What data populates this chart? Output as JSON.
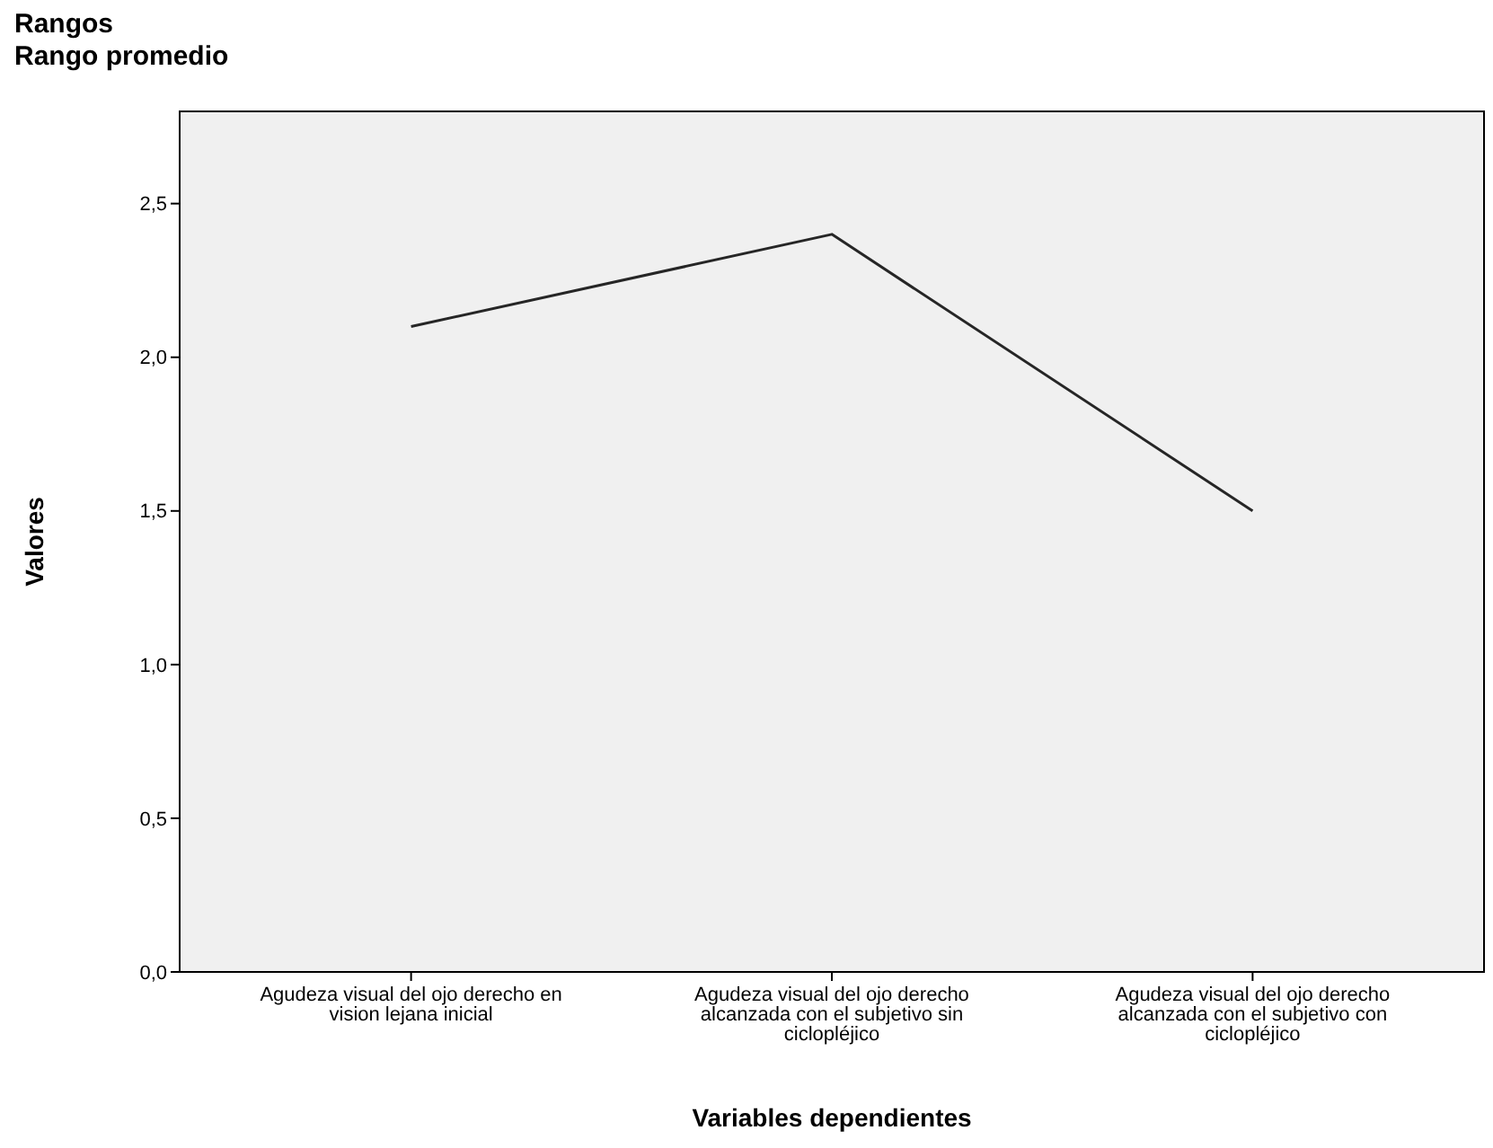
{
  "chart_data": {
    "type": "line",
    "title": "Rangos",
    "subtitle": "Rango promedio",
    "xlabel": "Variables dependientes",
    "ylabel": "Valores",
    "categories": [
      "Agudeza visual del ojo derecho en vision lejana inicial",
      "Agudeza visual del ojo derecho alcanzada con el subjetivo sin ciclopléjico",
      "Agudeza visual del ojo derecho alcanzada con el subjetivo con ciclopléjico"
    ],
    "series": [
      {
        "color": "#262626",
        "values": [
          2.1,
          2.4,
          1.5
        ]
      }
    ],
    "ylim": [
      0,
      2.8
    ],
    "yticks": [
      {
        "value": 0,
        "label": "0,0"
      },
      {
        "value": 0.5,
        "label": "0,5"
      },
      {
        "value": 1,
        "label": "1,0"
      },
      {
        "value": 1.5,
        "label": "1,5"
      },
      {
        "value": 2,
        "label": "2,0"
      },
      {
        "value": 2.5,
        "label": "2,5"
      }
    ],
    "grid": false,
    "marker": "none",
    "line_style": "solid"
  }
}
